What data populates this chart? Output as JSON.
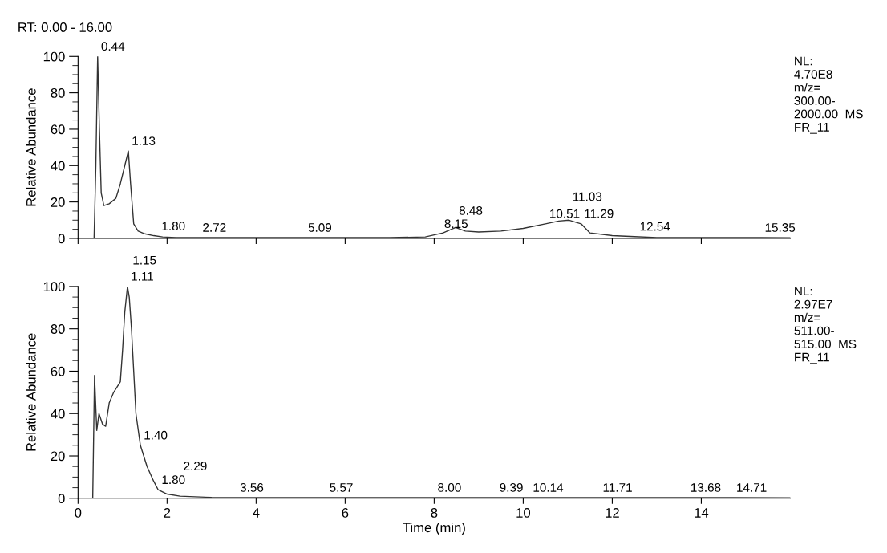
{
  "chart_data": [
    {
      "type": "line",
      "title": "RT: 0.00 - 16.00",
      "ylabel": "Relative Abundance",
      "tick_labels": "y",
      "xlim": [
        0,
        16
      ],
      "xticks": [
        0,
        2,
        4,
        6,
        8,
        10,
        12,
        14
      ],
      "ylim": [
        0,
        100
      ],
      "yticks": [
        0,
        20,
        40,
        60,
        80,
        100
      ],
      "series": [
        {
          "color": "#333333",
          "x": [
            0,
            0.36,
            0.4,
            0.44,
            0.48,
            0.52,
            0.58,
            0.7,
            0.85,
            0.95,
            1.05,
            1.13,
            1.18,
            1.25,
            1.35,
            1.5,
            1.7,
            1.9,
            2.2,
            3,
            5,
            7,
            7.8,
            8.2,
            8.48,
            8.7,
            9,
            9.5,
            10,
            10.5,
            10.8,
            11.03,
            11.3,
            11.5,
            12,
            12.5,
            13,
            14,
            15.35,
            16
          ],
          "values": [
            0,
            0,
            40,
            100,
            60,
            25,
            18,
            19,
            22,
            30,
            40,
            48,
            30,
            8,
            4,
            2.5,
            1.5,
            0.8,
            0.5,
            0.4,
            0.4,
            0.4,
            0.8,
            3,
            6,
            4,
            3.5,
            4,
            5.5,
            8,
            9.5,
            10,
            8,
            3,
            1.5,
            1,
            0.5,
            0.4,
            0.4,
            0.3
          ]
        }
      ],
      "annotations": [
        {
          "text": "0.44",
          "x": 0.44,
          "y": 100
        },
        {
          "text": "1.13",
          "x": 1.13,
          "y": 48
        },
        {
          "text": "1.80",
          "x": 1.8,
          "y": 1.2
        },
        {
          "text": "2.72",
          "x": 2.72,
          "y": 0.4
        },
        {
          "text": "5.09",
          "x": 5.09,
          "y": 0.4
        },
        {
          "text": "8.15",
          "x": 8.15,
          "y": 2.5
        },
        {
          "text": "8.48",
          "x": 8.48,
          "y": 6
        },
        {
          "text": "10.51",
          "x": 10.51,
          "y": 8
        },
        {
          "text": "11.03",
          "x": 11.03,
          "y": 10
        },
        {
          "text": "11.29",
          "x": 11.29,
          "y": 8
        },
        {
          "text": "12.54",
          "x": 12.54,
          "y": 1
        },
        {
          "text": "15.35",
          "x": 15.35,
          "y": 0.4
        },
        "NL:\n4.70E8\nm/z=\n300.00-\n2000.00  MS\nFR_11"
      ]
    },
    {
      "type": "line",
      "xlabel": "Time (min)",
      "ylabel": "Relative Abundance",
      "xlim": [
        0,
        16
      ],
      "xticks": [
        0,
        2,
        4,
        6,
        8,
        10,
        12,
        14
      ],
      "ylim": [
        0,
        100
      ],
      "yticks": [
        0,
        20,
        40,
        60,
        80,
        100
      ],
      "series": [
        {
          "color": "#333333",
          "x": [
            0,
            0.33,
            0.37,
            0.42,
            0.47,
            0.55,
            0.62,
            0.7,
            0.8,
            0.95,
            1.0,
            1.05,
            1.11,
            1.15,
            1.2,
            1.3,
            1.4,
            1.55,
            1.7,
            1.8,
            2.0,
            2.29,
            3,
            3.56,
            5.57,
            8,
            9.39,
            10.14,
            11.71,
            13.68,
            14.71,
            16
          ],
          "values": [
            0,
            0,
            58,
            32,
            40,
            35,
            34,
            45,
            50,
            55,
            70,
            88,
            100,
            95,
            80,
            40,
            25,
            15,
            8,
            4,
            2,
            1,
            0.4,
            0.3,
            0.3,
            0.3,
            0.3,
            0.3,
            0.3,
            0.3,
            0.3,
            0.2
          ]
        }
      ],
      "annotations": [
        {
          "text": "1.11",
          "x": 1.11,
          "y": 100
        },
        {
          "text": "1.15",
          "x": 1.15,
          "y": 95
        },
        {
          "text": "1.40",
          "x": 1.4,
          "y": 25
        },
        {
          "text": "1.80",
          "x": 1.8,
          "y": 4
        },
        {
          "text": "2.29",
          "x": 2.29,
          "y": 1
        },
        {
          "text": "3.56",
          "x": 3.56,
          "y": 0.3
        },
        {
          "text": "5.57",
          "x": 5.57,
          "y": 0.3
        },
        {
          "text": "8.00",
          "x": 8.0,
          "y": 0.3
        },
        {
          "text": "9.39",
          "x": 9.39,
          "y": 0.3
        },
        {
          "text": "10.14",
          "x": 10.14,
          "y": 0.3
        },
        {
          "text": "11.71",
          "x": 11.71,
          "y": 0.3
        },
        {
          "text": "13.68",
          "x": 13.68,
          "y": 0.3
        },
        {
          "text": "14.71",
          "x": 14.71,
          "y": 0.3
        },
        "NL:\n2.97E7\nm/z=\n511.00-\n515.00  MS\nFR_11"
      ]
    }
  ]
}
